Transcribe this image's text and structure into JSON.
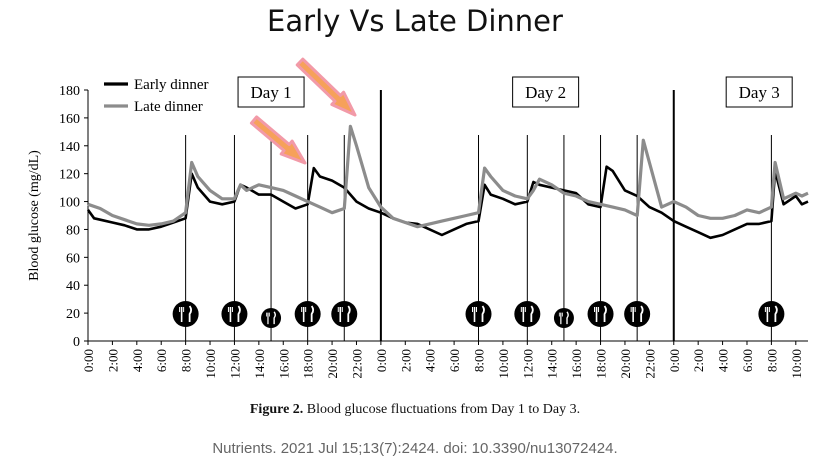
{
  "page": {
    "title": "Early Vs Late Dinner",
    "caption_bold": "Figure 2.",
    "caption_text": " Blood glucose fluctuations from Day 1 to Day 3.",
    "citation": "Nutrients. 2021 Jul 15;13(7):2424. doi: 10.3390/nu13072424."
  },
  "chart_data": {
    "type": "line",
    "xlabel": "",
    "ylabel": "Blood glucose (mg/dL)",
    "ylim": [
      0,
      180
    ],
    "yticks": [
      0,
      20,
      40,
      60,
      80,
      100,
      120,
      140,
      160,
      180
    ],
    "xlim_hours": [
      0,
      59
    ],
    "xtick_labels": [
      "0:00",
      "2:00",
      "4:00",
      "6:00",
      "8:00",
      "10:00",
      "12:00",
      "14:00",
      "16:00",
      "18:00",
      "20:00",
      "22:00",
      "0:00",
      "2:00",
      "4:00",
      "6:00",
      "8:00",
      "10:00",
      "12:00",
      "14:00",
      "16:00",
      "18:00",
      "20:00",
      "22:00",
      "0:00",
      "2:00",
      "4:00",
      "6:00",
      "8:00",
      "10:00"
    ],
    "day_labels": [
      {
        "label": "Day 1",
        "hour": 15.0
      },
      {
        "label": "Day 2",
        "hour": 37.5
      },
      {
        "label": "Day 3",
        "hour": 55.0
      }
    ],
    "day_boundaries_hours": [
      24,
      48
    ],
    "meal_markers_hours": [
      8,
      12,
      15,
      18,
      21,
      32,
      36,
      39,
      42,
      45,
      56
    ],
    "small_meal_markers_hours": [
      15,
      39
    ],
    "arrows_hours": [
      18,
      22
    ],
    "legend": [
      "Early dinner",
      "Late dinner"
    ],
    "series": [
      {
        "name": "Early dinner",
        "color": "#000000",
        "x": [
          0,
          0.5,
          1,
          2,
          3,
          4,
          5,
          6,
          7,
          8,
          8.5,
          9,
          10,
          11,
          12,
          12.5,
          13,
          14,
          15,
          16,
          17,
          18,
          18.5,
          19,
          20,
          21,
          22,
          23,
          24,
          25,
          26,
          27,
          28,
          29,
          30,
          31,
          32,
          32.5,
          33,
          34,
          35,
          36,
          36.5,
          37,
          38,
          39,
          40,
          41,
          42,
          42.5,
          43,
          44,
          45,
          46,
          47,
          48,
          49,
          50,
          51,
          52,
          53,
          54,
          55,
          56,
          56.3,
          57,
          58,
          58.5,
          59
        ],
        "y": [
          94,
          88,
          87,
          85,
          83,
          80,
          80,
          82,
          85,
          88,
          120,
          110,
          100,
          98,
          100,
          112,
          110,
          105,
          105,
          100,
          95,
          98,
          124,
          118,
          115,
          110,
          100,
          95,
          92,
          88,
          85,
          84,
          80,
          76,
          80,
          84,
          86,
          112,
          105,
          102,
          98,
          100,
          114,
          112,
          110,
          108,
          106,
          98,
          96,
          125,
          122,
          108,
          104,
          96,
          92,
          86,
          82,
          78,
          74,
          76,
          80,
          84,
          84,
          86,
          122,
          98,
          104,
          98,
          100
        ]
      },
      {
        "name": "Late dinner",
        "color": "#8c8c8c",
        "x": [
          0,
          1,
          2,
          3,
          4,
          5,
          6,
          7,
          8,
          8.5,
          9,
          10,
          11,
          12,
          12.5,
          13,
          14,
          15,
          16,
          17,
          18,
          19,
          20,
          21,
          21.5,
          22,
          23,
          24,
          25,
          26,
          27,
          28,
          29,
          30,
          31,
          32,
          32.5,
          33,
          34,
          35,
          36,
          36.5,
          37,
          38,
          39,
          40,
          41,
          42,
          43,
          44,
          45,
          45.5,
          46,
          47,
          48,
          49,
          50,
          51,
          52,
          53,
          54,
          55,
          56,
          56.3,
          57,
          58,
          58.5,
          59
        ],
        "y": [
          98,
          95,
          90,
          87,
          84,
          83,
          84,
          86,
          92,
          128,
          118,
          108,
          102,
          102,
          112,
          108,
          112,
          110,
          108,
          104,
          100,
          96,
          92,
          95,
          154,
          140,
          110,
          96,
          88,
          85,
          82,
          84,
          86,
          88,
          90,
          92,
          124,
          118,
          108,
          104,
          102,
          108,
          116,
          112,
          106,
          104,
          100,
          98,
          96,
          94,
          90,
          144,
          128,
          96,
          100,
          96,
          90,
          88,
          88,
          90,
          94,
          92,
          96,
          128,
          102,
          106,
          104,
          106
        ]
      }
    ]
  }
}
